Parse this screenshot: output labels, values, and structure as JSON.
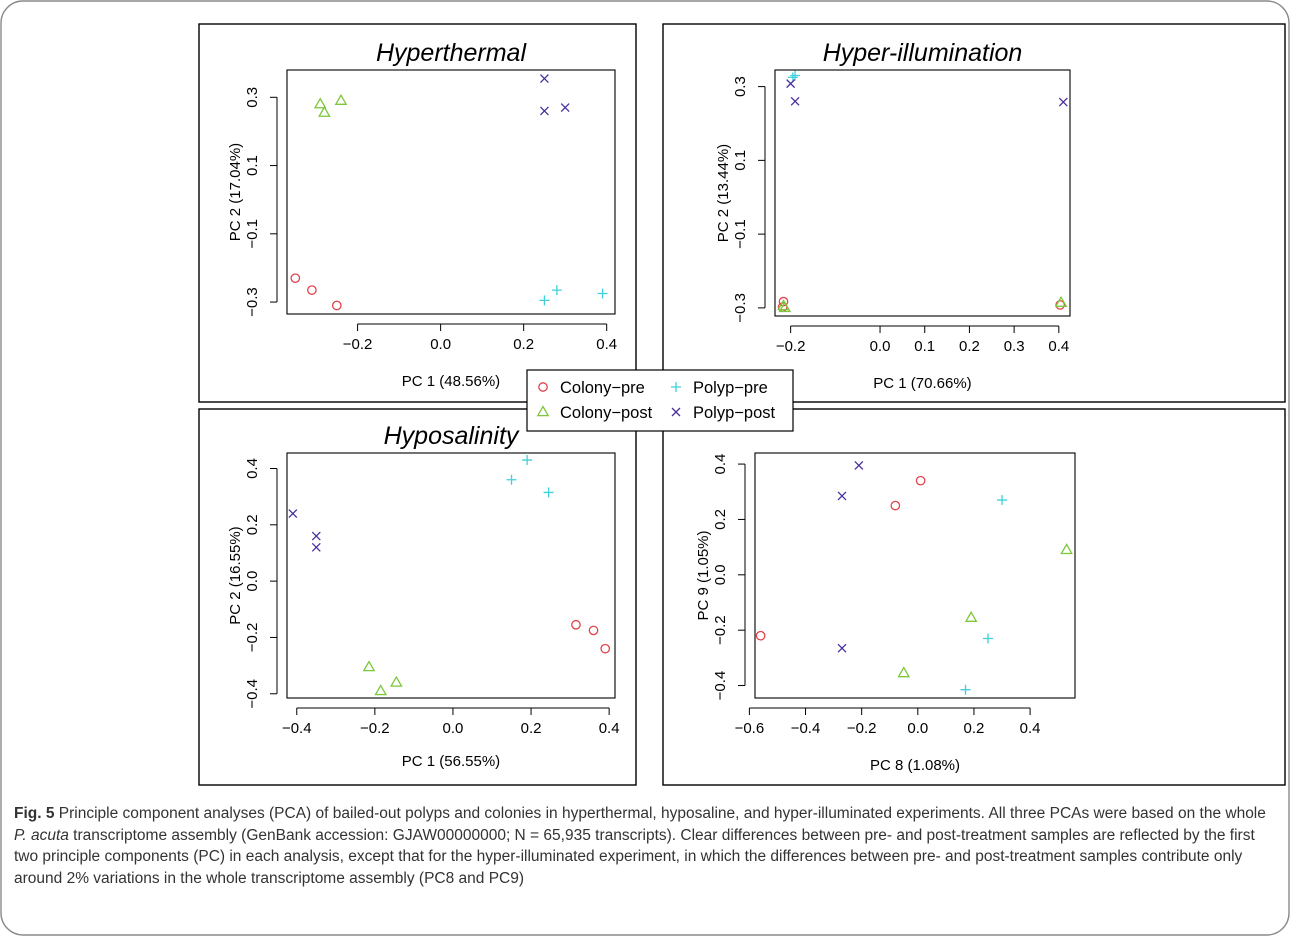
{
  "chart_data": [
    {
      "type": "scatter",
      "title": "Hyperthermal",
      "xlabel": "PC 1 (48.56%)",
      "ylabel": "PC 2 (17.04%)",
      "xlim": [
        -0.37,
        0.42
      ],
      "ylim": [
        -0.335,
        0.38
      ],
      "xticks": [
        {
          "v": -0.2,
          "label": "−0.2"
        },
        {
          "v": 0.0,
          "label": "0.0"
        },
        {
          "v": 0.2,
          "label": "0.2"
        },
        {
          "v": 0.4,
          "label": "0.4"
        }
      ],
      "yticks": [
        {
          "v": -0.3,
          "label": "−0.3"
        },
        {
          "v": -0.1,
          "label": "−0.1"
        },
        {
          "v": 0.1,
          "label": "0.1"
        },
        {
          "v": 0.3,
          "label": "0.3"
        }
      ],
      "series": [
        {
          "name": "Colony−pre",
          "marker": "circle",
          "x": [
            -0.35,
            -0.31,
            -0.25
          ],
          "y": [
            -0.23,
            -0.265,
            -0.31
          ]
        },
        {
          "name": "Colony−post",
          "marker": "triangle",
          "x": [
            -0.29,
            -0.28,
            -0.24
          ],
          "y": [
            0.28,
            0.255,
            0.29
          ]
        },
        {
          "name": "Polyp−pre",
          "marker": "plus",
          "x": [
            0.25,
            0.28,
            0.39
          ],
          "y": [
            -0.295,
            -0.265,
            -0.275
          ]
        },
        {
          "name": "Polyp−post",
          "marker": "cross",
          "x": [
            0.25,
            0.25,
            0.3
          ],
          "y": [
            0.355,
            0.26,
            0.27
          ]
        }
      ]
    },
    {
      "type": "scatter",
      "title": "Hyper-illumination",
      "xlabel": "PC 1 (70.66%)",
      "ylabel": "PC 2 (13.44%)",
      "xlim": [
        -0.235,
        0.425
      ],
      "ylim": [
        -0.322,
        0.345
      ],
      "xticks": [
        {
          "v": -0.2,
          "label": "−0.2"
        },
        {
          "v": 0.0,
          "label": "0.0"
        },
        {
          "v": 0.1,
          "label": "0.1"
        },
        {
          "v": 0.2,
          "label": "0.2"
        },
        {
          "v": 0.3,
          "label": "0.3"
        },
        {
          "v": 0.4,
          "label": "0.4"
        }
      ],
      "yticks": [
        {
          "v": -0.3,
          "label": "−0.3"
        },
        {
          "v": -0.1,
          "label": "−0.1"
        },
        {
          "v": 0.1,
          "label": "0.1"
        },
        {
          "v": 0.3,
          "label": "0.3"
        }
      ],
      "series": [
        {
          "name": "Colony−pre",
          "marker": "circle",
          "x": [
            -0.216,
            -0.218,
            0.403
          ],
          "y": [
            -0.283,
            -0.298,
            -0.292
          ]
        },
        {
          "name": "Colony−post",
          "marker": "triangle",
          "x": [
            -0.216,
            -0.213,
            0.405
          ],
          "y": [
            -0.295,
            -0.3,
            -0.286
          ]
        },
        {
          "name": "Polyp−pre",
          "marker": "plus",
          "x": [
            -0.195,
            -0.19
          ],
          "y": [
            0.325,
            0.33
          ]
        },
        {
          "name": "Polyp−post",
          "marker": "cross",
          "x": [
            -0.2,
            -0.19,
            0.41
          ],
          "y": [
            0.308,
            0.26,
            0.258
          ]
        }
      ]
    },
    {
      "type": "scatter",
      "title": "Hyposalinity",
      "xlabel": "PC 1 (56.55%)",
      "ylabel": "PC 2 (16.55%)",
      "xlim": [
        -0.425,
        0.415
      ],
      "ylim": [
        -0.415,
        0.455
      ],
      "xticks": [
        {
          "v": -0.4,
          "label": "−0.4"
        },
        {
          "v": -0.2,
          "label": "−0.2"
        },
        {
          "v": 0.0,
          "label": "0.0"
        },
        {
          "v": 0.2,
          "label": "0.2"
        },
        {
          "v": 0.4,
          "label": "0.4"
        }
      ],
      "yticks": [
        {
          "v": -0.4,
          "label": "−0.4"
        },
        {
          "v": -0.2,
          "label": "−0.2"
        },
        {
          "v": 0.0,
          "label": "0.0"
        },
        {
          "v": 0.2,
          "label": "0.2"
        },
        {
          "v": 0.4,
          "label": "0.4"
        }
      ],
      "series": [
        {
          "name": "Colony−pre",
          "marker": "circle",
          "x": [
            0.315,
            0.36,
            0.39
          ],
          "y": [
            -0.155,
            -0.175,
            -0.24
          ]
        },
        {
          "name": "Colony−post",
          "marker": "triangle",
          "x": [
            -0.215,
            -0.185,
            -0.145
          ],
          "y": [
            -0.305,
            -0.39,
            -0.36
          ]
        },
        {
          "name": "Polyp−pre",
          "marker": "plus",
          "x": [
            0.15,
            0.19,
            0.245
          ],
          "y": [
            0.36,
            0.43,
            0.315
          ]
        },
        {
          "name": "Polyp−post",
          "marker": "cross",
          "x": [
            -0.41,
            -0.35,
            -0.35
          ],
          "y": [
            0.24,
            0.16,
            0.12
          ]
        }
      ]
    },
    {
      "type": "scatter",
      "title": "",
      "xlabel": "PC 8 (1.08%)",
      "ylabel": "PC 9 (1.05%)",
      "xlim": [
        -0.58,
        0.56
      ],
      "ylim": [
        -0.445,
        0.44
      ],
      "xticks": [
        {
          "v": -0.6,
          "label": "−0.6"
        },
        {
          "v": -0.4,
          "label": "−0.4"
        },
        {
          "v": -0.2,
          "label": "−0.2"
        },
        {
          "v": 0.0,
          "label": "0.0"
        },
        {
          "v": 0.2,
          "label": "0.2"
        },
        {
          "v": 0.4,
          "label": "0.4"
        }
      ],
      "yticks": [
        {
          "v": -0.4,
          "label": "−0.4"
        },
        {
          "v": -0.2,
          "label": "−0.2"
        },
        {
          "v": 0.0,
          "label": "0.0"
        },
        {
          "v": 0.2,
          "label": "0.2"
        },
        {
          "v": 0.4,
          "label": "0.4"
        }
      ],
      "series": [
        {
          "name": "Colony−pre",
          "marker": "circle",
          "x": [
            0.01,
            -0.08,
            -0.56
          ],
          "y": [
            0.34,
            0.25,
            -0.22
          ]
        },
        {
          "name": "Colony−post",
          "marker": "triangle",
          "x": [
            0.53,
            0.19,
            -0.05
          ],
          "y": [
            0.09,
            -0.155,
            -0.355
          ]
        },
        {
          "name": "Polyp−pre",
          "marker": "plus",
          "x": [
            0.3,
            0.25,
            0.17
          ],
          "y": [
            0.27,
            -0.23,
            -0.415
          ]
        },
        {
          "name": "Polyp−post",
          "marker": "cross",
          "x": [
            -0.21,
            -0.27,
            -0.27
          ],
          "y": [
            0.395,
            0.285,
            -0.265
          ]
        }
      ]
    }
  ],
  "legend": [
    {
      "label": "Colony−pre",
      "marker": "circle",
      "color": "#e0434a"
    },
    {
      "label": "Polyp−pre",
      "marker": "plus",
      "color": "#3fd0dc"
    },
    {
      "label": "Colony−post",
      "marker": "triangle",
      "color": "#7cc73a"
    },
    {
      "label": "Polyp−post",
      "marker": "cross",
      "color": "#4a2f9c"
    }
  ],
  "colors": {
    "circle": "#e0434a",
    "triangle": "#7cc73a",
    "plus": "#3fd0dc",
    "cross": "#4a2f9c"
  },
  "caption": {
    "label": "Fig. 5",
    "part1": "Principle component analyses (PCA) of bailed-out polyps and colonies in hyperthermal, hyposaline, and hyper-illuminated experiments. All three PCAs were based on the whole ",
    "species": "P. acuta",
    "part2": " transcriptome assembly (GenBank accession: GJAW00000000; N = 65,935 transcripts). Clear differences between pre- and post-treatment samples are reflected by the first two principle components (PC) in each analysis, except that for the hyper-illuminated experiment, in which the differences between pre- and post-treatment samples contribute only around 2% variations in the whole transcriptome assembly (PC8 and PC9)"
  }
}
